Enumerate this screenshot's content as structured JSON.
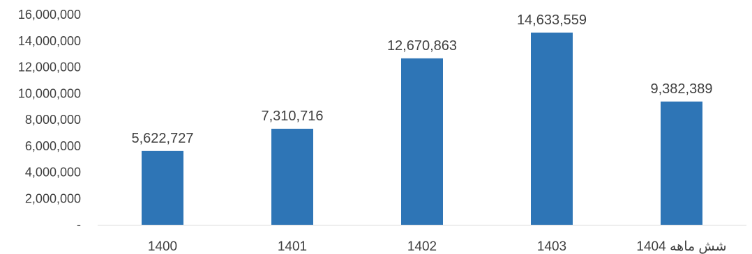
{
  "chart_data": {
    "type": "bar",
    "title": "",
    "xlabel": "",
    "ylabel": "",
    "categories": [
      "1400",
      "1401",
      "1402",
      "1403",
      "شش ماهه 1404"
    ],
    "values": [
      5622727,
      7310716,
      12670863,
      14633559,
      9382389
    ],
    "data_labels": [
      "5,622,727",
      "7,310,716",
      "12,670,863",
      "14,633,559",
      "9,382,389"
    ],
    "ylim": [
      0,
      16000000
    ],
    "y_ticks": [
      0,
      2000000,
      4000000,
      6000000,
      8000000,
      10000000,
      12000000,
      14000000,
      16000000
    ],
    "y_tick_labels": [
      "-",
      "2,000,000",
      "4,000,000",
      "6,000,000",
      "8,000,000",
      "10,000,000",
      "12,000,000",
      "14,000,000",
      "16,000,000"
    ],
    "grid": false,
    "legend": "none",
    "bar_color": "#2e75b6"
  }
}
